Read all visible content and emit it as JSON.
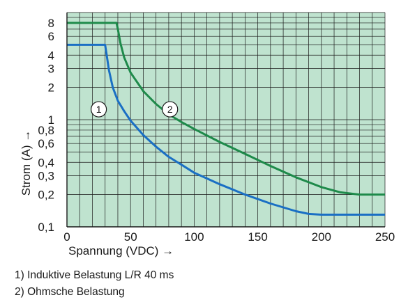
{
  "chart_data": {
    "type": "line",
    "xlabel": "Spannung (VDC) →",
    "ylabel": "Strom (A) →",
    "x_ticks": [
      0,
      50,
      100,
      150,
      200,
      250
    ],
    "x_tick_labels": [
      "0",
      "50",
      "100",
      "150",
      "200",
      "250"
    ],
    "y_ticks": [
      0.1,
      0.2,
      0.3,
      0.4,
      0.6,
      0.8,
      1,
      2,
      3,
      4,
      6,
      8
    ],
    "y_tick_labels": [
      "0,1",
      "0,2",
      "0,3",
      "0,4",
      "0,6",
      "0,8",
      "1",
      "2",
      "3",
      "4",
      "6",
      "8"
    ],
    "xlim": [
      0,
      250
    ],
    "ylim": [
      0.1,
      10
    ],
    "y_scale": "log",
    "grid": true,
    "plot_background": "#bfe3cf",
    "series": [
      {
        "name": "1",
        "color": "#1a6fc4",
        "x": [
          0,
          30,
          31,
          33,
          36,
          40,
          45,
          50,
          60,
          70,
          80,
          90,
          100,
          120,
          140,
          160,
          180,
          190,
          200,
          220,
          250
        ],
        "y": [
          5,
          5,
          4.2,
          2.9,
          2.0,
          1.5,
          1.2,
          0.98,
          0.72,
          0.56,
          0.45,
          0.38,
          0.32,
          0.25,
          0.2,
          0.165,
          0.14,
          0.132,
          0.13,
          0.13,
          0.13
        ],
        "marker_label": "1",
        "marker_at": [
          25,
          1.25
        ]
      },
      {
        "name": "2",
        "color": "#1e8a4a",
        "x": [
          0,
          39,
          40,
          42,
          45,
          50,
          60,
          70,
          80,
          90,
          100,
          120,
          140,
          160,
          180,
          200,
          215,
          230,
          250
        ],
        "y": [
          8,
          8,
          7,
          5.2,
          3.8,
          2.75,
          1.85,
          1.4,
          1.12,
          0.95,
          0.82,
          0.62,
          0.48,
          0.37,
          0.29,
          0.235,
          0.21,
          0.2,
          0.2
        ],
        "marker_label": "2",
        "marker_at": [
          81,
          1.25
        ]
      }
    ]
  },
  "notes": [
    "1) Induktive Belastung L/R 40 ms",
    "2) Ohmsche Belastung"
  ]
}
